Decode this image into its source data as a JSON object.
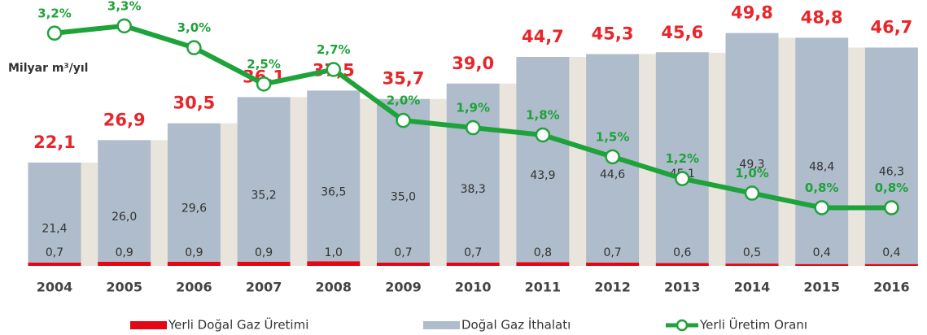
{
  "chart_data": {
    "type": "bar_line",
    "y_label": "Milyar m³/yıl",
    "categories": [
      "2004",
      "2005",
      "2006",
      "2007",
      "2008",
      "2009",
      "2010",
      "2011",
      "2012",
      "2013",
      "2014",
      "2015",
      "2016"
    ],
    "series": [
      {
        "name": "Yerli Doğal Gaz Üretimi",
        "color": "#e30613",
        "values": [
          0.7,
          0.9,
          0.9,
          0.9,
          1.0,
          0.7,
          0.7,
          0.8,
          0.7,
          0.6,
          0.5,
          0.4,
          0.4
        ],
        "value_labels": [
          "0,7",
          "0,9",
          "0,9",
          "0,9",
          "1,0",
          "0,7",
          "0,7",
          "0,8",
          "0,7",
          "0,6",
          "0,5",
          "0,4",
          "0,4"
        ]
      },
      {
        "name": "Doğal Gaz İthalatı",
        "color": "#aebccb",
        "values": [
          21.4,
          26.0,
          29.6,
          35.2,
          36.5,
          35.0,
          38.3,
          43.9,
          44.6,
          45.1,
          49.3,
          48.4,
          46.3
        ],
        "value_labels": [
          "21,4",
          "26,0",
          "29,6",
          "35,2",
          "36,5",
          "35,0",
          "38,3",
          "43,9",
          "44,6",
          "45,1",
          "49,3",
          "48,4",
          "46,3"
        ]
      },
      {
        "name": "Yerli Üretim Oranı",
        "color": "#1ea23a",
        "axis": "y2",
        "values": [
          3.2,
          3.3,
          3.0,
          2.5,
          2.7,
          2.0,
          1.9,
          1.8,
          1.5,
          1.2,
          1.0,
          0.8,
          0.8
        ],
        "value_labels": [
          "3,2%",
          "3,3%",
          "3,0%",
          "2,5%",
          "2,7%",
          "2,0%",
          "1,9%",
          "1,8%",
          "1,5%",
          "1,2%",
          "1,0%",
          "0,8%",
          "0,8%"
        ]
      }
    ],
    "totals": [
      22.1,
      26.9,
      30.5,
      36.1,
      37.5,
      35.7,
      39.0,
      44.7,
      45.3,
      45.6,
      49.8,
      48.8,
      46.7
    ],
    "total_labels": [
      "22,1",
      "26,9",
      "30,5",
      "36,1",
      "37,5",
      "35,7",
      "39,0",
      "44,7",
      "45,3",
      "45,6",
      "49,8",
      "48,8",
      "46,7"
    ],
    "total_color": "#e8262a",
    "gap_color": "#e9e5dc",
    "ylim": [
      0,
      56
    ],
    "y2lim": [
      0,
      3.6
    ]
  }
}
